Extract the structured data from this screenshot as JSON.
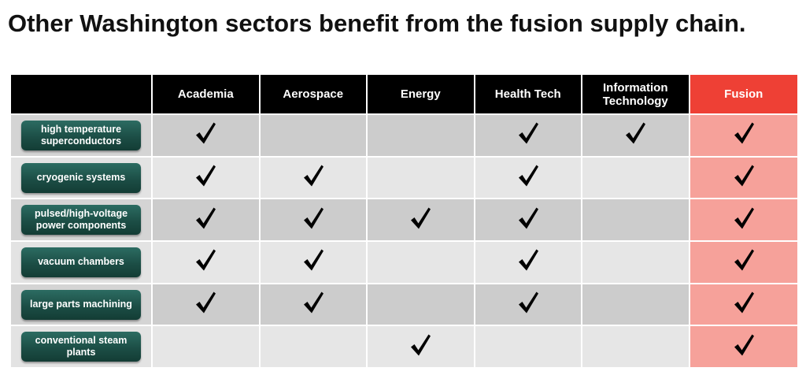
{
  "title": "Other Washington sectors benefit from the fusion supply chain.",
  "columns": [
    "Academia",
    "Aerospace",
    "Energy",
    "Health Tech",
    "Information Technology",
    "Fusion"
  ],
  "rows": [
    {
      "label": "high temperature superconductors",
      "checks": [
        true,
        false,
        false,
        true,
        true,
        true
      ]
    },
    {
      "label": "cryogenic systems",
      "checks": [
        true,
        true,
        false,
        true,
        false,
        true
      ]
    },
    {
      "label": "pulsed/high-voltage power components",
      "checks": [
        true,
        true,
        true,
        true,
        false,
        true
      ]
    },
    {
      "label": "vacuum chambers",
      "checks": [
        true,
        true,
        false,
        true,
        false,
        true
      ]
    },
    {
      "label": "large parts machining",
      "checks": [
        true,
        true,
        false,
        true,
        false,
        true
      ]
    },
    {
      "label": "conventional steam plants",
      "checks": [
        false,
        false,
        true,
        false,
        false,
        true
      ]
    }
  ],
  "colors": {
    "header_bg": "#000000",
    "fusion_header_bg": "#ee4035",
    "fusion_cell_bg": "#f6a19a",
    "row_dark_bg": "#cccccc",
    "row_light_bg": "#e6e6e6",
    "pill_bg": "#1c4e46",
    "checkmark": "#000000"
  },
  "icons": {
    "check": "checkmark-icon"
  }
}
